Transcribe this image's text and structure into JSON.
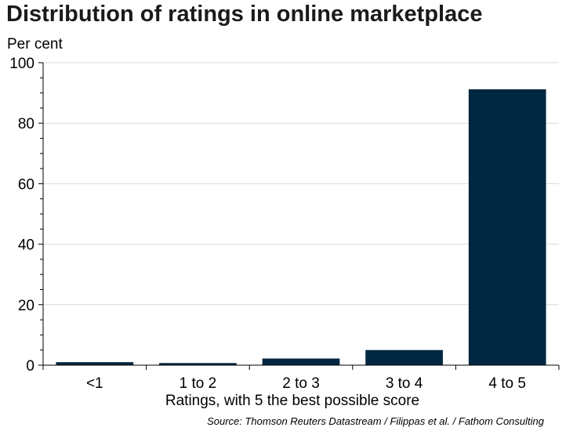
{
  "chart_data": {
    "type": "bar",
    "title": "Distribution of ratings in online marketplace",
    "ylabel": "Per cent",
    "xlabel": "Ratings, with 5 the best possible score",
    "source": "Source: Thomson Reuters Datastream / Filippas et al. / Fathom Consulting",
    "categories": [
      "<1",
      "1 to 2",
      "2 to 3",
      "3 to 4",
      "4 to 5"
    ],
    "values": [
      1.0,
      0.7,
      2.2,
      5.0,
      91.2
    ],
    "ylim": [
      0,
      100
    ],
    "yticks": [
      0,
      20,
      40,
      60,
      80,
      100
    ],
    "grid": true,
    "bar_color": "#002741",
    "grid_color": "#d9d9d9"
  }
}
